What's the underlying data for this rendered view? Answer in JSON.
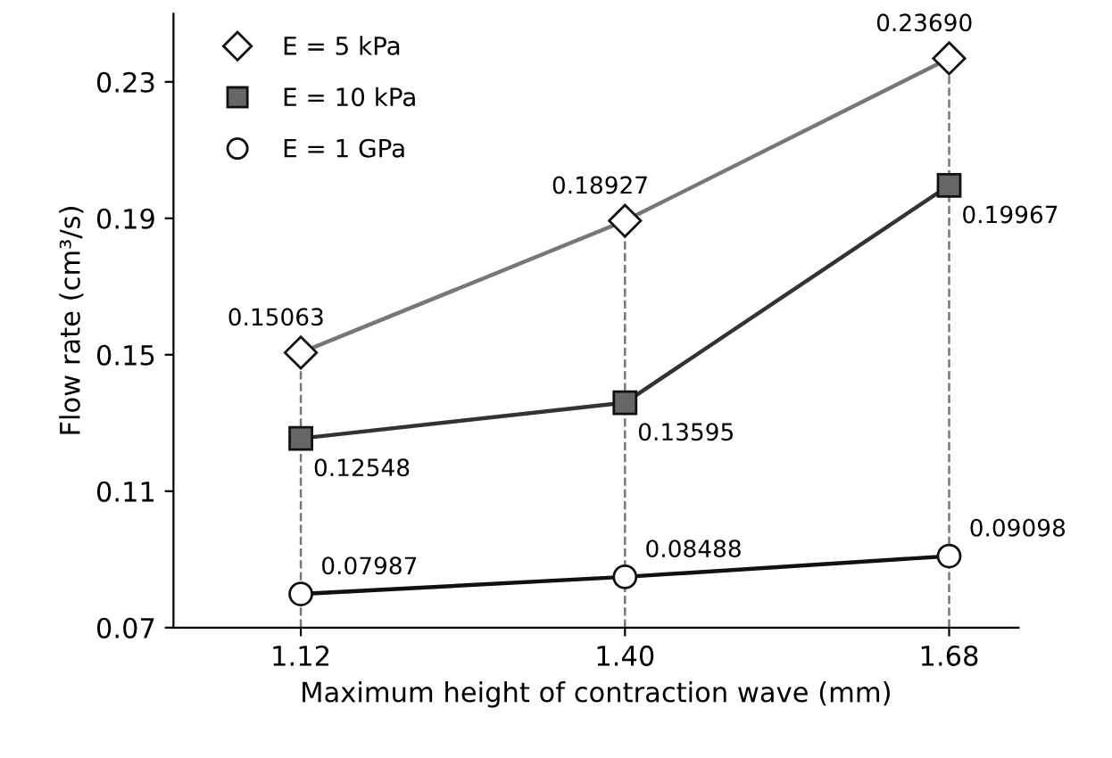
{
  "chart_data": {
    "type": "line",
    "xlabel": "Maximum height of contraction wave (mm)",
    "ylabel": "Flow rate (cm³/s)",
    "x": [
      1.12,
      1.4,
      1.68
    ],
    "series": [
      {
        "name": "E = 5 kPa",
        "color": "#777777",
        "marker": "diamond",
        "values": [
          0.15063,
          0.18927,
          0.2369
        ],
        "value_labels": [
          "0.15063",
          "0.18927",
          "0.23690"
        ]
      },
      {
        "name": "E = 10 kPa",
        "color": "#333333",
        "marker": "square",
        "values": [
          0.12548,
          0.13595,
          0.19967
        ],
        "value_labels": [
          "0.12548",
          "0.13595",
          "0.19967"
        ]
      },
      {
        "name": "E = 1 GPa",
        "color": "#111111",
        "marker": "circle",
        "values": [
          0.07987,
          0.08488,
          0.09098
        ],
        "value_labels": [
          "0.07987",
          "0.08488",
          "0.09098"
        ]
      }
    ],
    "xlim": [
      1.01,
      1.74
    ],
    "xticks": [
      1.12,
      {
        "value": 1.4,
        "label": "1.40"
      },
      1.68
    ],
    "ylim": [
      0.07,
      0.25
    ],
    "yticks": [
      0.07,
      0.11,
      0.15,
      0.19,
      0.23
    ],
    "ref_lines": [
      {
        "axis": "x",
        "value": 1.12,
        "color": "#777777",
        "line_style": "dashed"
      },
      {
        "axis": "x",
        "value": 1.4,
        "color": "#777777",
        "line_style": "dashed"
      },
      {
        "axis": "x",
        "value": 1.68,
        "color": "#777777",
        "line_style": "dashed"
      }
    ],
    "grid": false,
    "legend": "top left",
    "line_style": "solid"
  }
}
